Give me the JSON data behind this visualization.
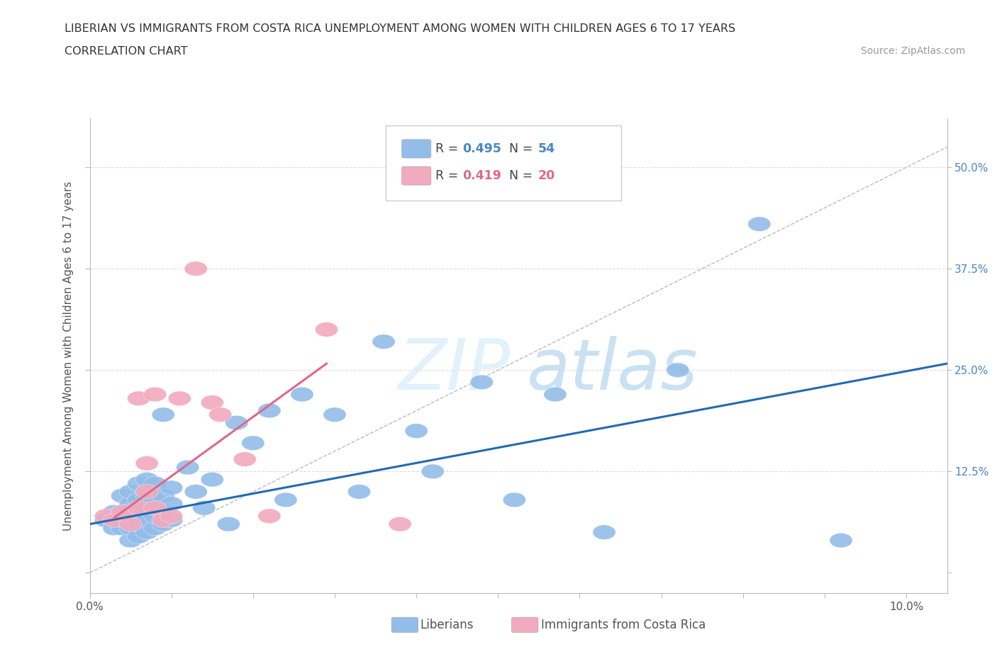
{
  "title_line1": "LIBERIAN VS IMMIGRANTS FROM COSTA RICA UNEMPLOYMENT AMONG WOMEN WITH CHILDREN AGES 6 TO 17 YEARS",
  "title_line2": "CORRELATION CHART",
  "source_text": "Source: ZipAtlas.com",
  "ylabel": "Unemployment Among Women with Children Ages 6 to 17 years",
  "xlim": [
    0.0,
    0.105
  ],
  "ylim": [
    -0.025,
    0.56
  ],
  "yticks": [
    0.0,
    0.125,
    0.25,
    0.375,
    0.5
  ],
  "ytick_labels": [
    "",
    "12.5%",
    "25.0%",
    "37.5%",
    "50.0%"
  ],
  "xticks": [
    0.0,
    0.01,
    0.02,
    0.03,
    0.04,
    0.05,
    0.06,
    0.07,
    0.08,
    0.09,
    0.1
  ],
  "xtick_labels": [
    "0.0%",
    "",
    "",
    "",
    "",
    "",
    "",
    "",
    "",
    "",
    "10.0%"
  ],
  "blue_R": "0.495",
  "blue_N": "54",
  "pink_R": "0.419",
  "pink_N": "20",
  "blue_color": "#92BDE8",
  "pink_color": "#F2AABE",
  "blue_line_color": "#2469B3",
  "pink_line_color": "#E06888",
  "diagonal_color": "#BBBBBB",
  "grid_color": "#DDDDDD",
  "blue_scatter_x": [
    0.002,
    0.003,
    0.003,
    0.004,
    0.004,
    0.004,
    0.005,
    0.005,
    0.005,
    0.005,
    0.005,
    0.006,
    0.006,
    0.006,
    0.006,
    0.006,
    0.007,
    0.007,
    0.007,
    0.007,
    0.007,
    0.008,
    0.008,
    0.008,
    0.008,
    0.009,
    0.009,
    0.009,
    0.009,
    0.01,
    0.01,
    0.01,
    0.012,
    0.013,
    0.014,
    0.015,
    0.017,
    0.018,
    0.02,
    0.022,
    0.024,
    0.026,
    0.03,
    0.033,
    0.036,
    0.04,
    0.042,
    0.048,
    0.052,
    0.057,
    0.063,
    0.072,
    0.082,
    0.092
  ],
  "blue_scatter_y": [
    0.065,
    0.055,
    0.075,
    0.055,
    0.075,
    0.095,
    0.04,
    0.055,
    0.07,
    0.085,
    0.1,
    0.045,
    0.06,
    0.075,
    0.09,
    0.11,
    0.05,
    0.065,
    0.08,
    0.095,
    0.115,
    0.055,
    0.07,
    0.09,
    0.11,
    0.06,
    0.075,
    0.095,
    0.195,
    0.065,
    0.085,
    0.105,
    0.13,
    0.1,
    0.08,
    0.115,
    0.06,
    0.185,
    0.16,
    0.2,
    0.09,
    0.22,
    0.195,
    0.1,
    0.285,
    0.175,
    0.125,
    0.235,
    0.09,
    0.22,
    0.05,
    0.25,
    0.43,
    0.04
  ],
  "pink_scatter_x": [
    0.002,
    0.003,
    0.004,
    0.005,
    0.006,
    0.006,
    0.007,
    0.007,
    0.008,
    0.008,
    0.009,
    0.01,
    0.011,
    0.013,
    0.015,
    0.016,
    0.019,
    0.022,
    0.029,
    0.038
  ],
  "pink_scatter_y": [
    0.07,
    0.065,
    0.075,
    0.06,
    0.08,
    0.215,
    0.1,
    0.135,
    0.08,
    0.22,
    0.065,
    0.07,
    0.215,
    0.375,
    0.21,
    0.195,
    0.14,
    0.07,
    0.3,
    0.06
  ],
  "blue_line_x": [
    0.0,
    0.105
  ],
  "blue_line_y": [
    0.06,
    0.258
  ],
  "pink_line_x": [
    0.003,
    0.029
  ],
  "pink_line_y": [
    0.068,
    0.258
  ],
  "diag_line_x": [
    0.0,
    0.105
  ],
  "diag_line_y": [
    0.0,
    0.525
  ]
}
